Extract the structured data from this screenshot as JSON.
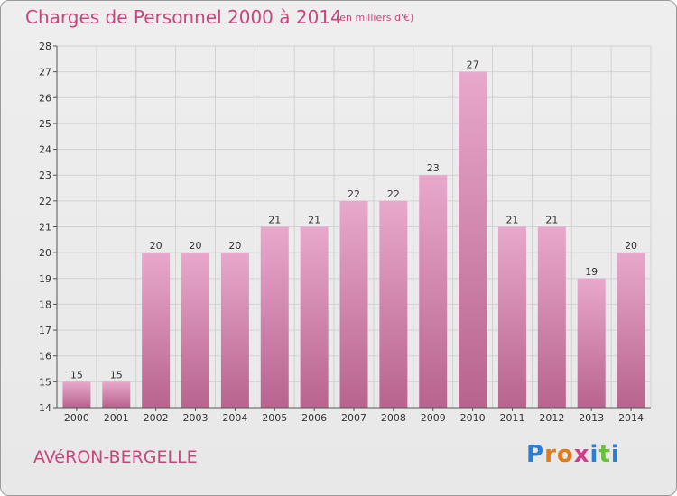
{
  "header": {
    "title": "Charges de Personnel 2000 à 2014",
    "unit": "(en milliers d'€)"
  },
  "footer": {
    "place": "AVéRON-BERGELLE",
    "brand": [
      "P",
      "r",
      "o",
      "x",
      "i",
      "t",
      "i"
    ],
    "brand_colors": [
      "#2a7fd4",
      "#e07b1a",
      "#e07b1a",
      "#d63a8c",
      "#2a7fd4",
      "#6abf3a",
      "#2a7fd4"
    ]
  },
  "colors": {
    "bar_top": "#e8a8cc",
    "bar_bottom": "#b8648e",
    "title": "#c8467e"
  },
  "chart_data": {
    "type": "bar",
    "categories": [
      "2000",
      "2001",
      "2002",
      "2003",
      "2004",
      "2005",
      "2006",
      "2007",
      "2008",
      "2009",
      "2010",
      "2011",
      "2012",
      "2013",
      "2014"
    ],
    "values": [
      15,
      15,
      20,
      20,
      20,
      21,
      21,
      22,
      22,
      23,
      27,
      21,
      21,
      19,
      20
    ],
    "title": "Charges de Personnel 2000 à 2014",
    "ylim": [
      14,
      28
    ],
    "yticks": [
      14,
      15,
      16,
      17,
      18,
      19,
      20,
      21,
      22,
      23,
      24,
      25,
      26,
      27,
      28
    ],
    "grid": true
  }
}
